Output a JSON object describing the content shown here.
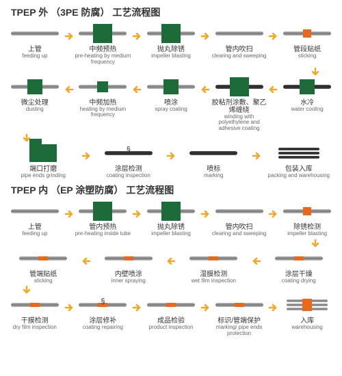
{
  "colors": {
    "green": "#1e6b3a",
    "orange": "#e8691c",
    "arrow": "#f5a623",
    "text": "#333",
    "subtext": "#666"
  },
  "section1": {
    "title": "TPEP 外 （3PE 防腐） 工艺流程图",
    "rows": [
      [
        {
          "cn": "上管",
          "en": "feeding up",
          "icon": "pipe"
        },
        {
          "cn": "中频预热",
          "en": "pre-heating by medium frequency",
          "icon": "pipe-block"
        },
        {
          "cn": "抛丸除锈",
          "en": "impeller blasting",
          "icon": "pipe-block"
        },
        {
          "cn": "管内吹扫",
          "en": "clearing and sweeping",
          "icon": "pipe"
        },
        {
          "cn": "管段贴纸",
          "en": "sticking",
          "icon": "pipe-osq"
        }
      ],
      [
        {
          "cn": "水冷",
          "en": "water cooling",
          "icon": "pipe-dark-block-sm"
        },
        {
          "cn": "胶粘剂涂敷、聚乙烯缠绕",
          "en": "winding with polyethylene and adhesive coating",
          "icon": "pipe-dark-block"
        },
        {
          "cn": "喷涂",
          "en": "spray coating",
          "icon": "pipe-block-sm"
        },
        {
          "cn": "中频加热",
          "en": "heating by medium frequency",
          "icon": "pipe-block-xs"
        },
        {
          "cn": "微尘处理",
          "en": "dusting",
          "icon": "pipe-block-sm"
        }
      ],
      [
        {
          "cn": "端口打磨",
          "en": "pipe ends grinding",
          "icon": "machine"
        },
        {
          "cn": "涂层检测",
          "en": "coating inspection",
          "icon": "pipe-dark-spring"
        },
        {
          "cn": "喷标",
          "en": "marking",
          "icon": "pipe-dark"
        },
        {
          "cn": "包装入库",
          "en": "packing and warehousing",
          "icon": "stacked"
        }
      ]
    ]
  },
  "section2": {
    "title": "TPEP 内 （EP 涂塑防腐） 工艺流程图",
    "rows": [
      [
        {
          "cn": "上管",
          "en": "feeding up",
          "icon": "pipe"
        },
        {
          "cn": "管内预热",
          "en": "pre-heating inside tube",
          "icon": "pipe-block"
        },
        {
          "cn": "抛丸除锈",
          "en": "impeller blasting",
          "icon": "pipe-block"
        },
        {
          "cn": "管内吹扫",
          "en": "clearing and sweeping",
          "icon": "pipe"
        },
        {
          "cn": "除锈检测",
          "en": "impeller blasting",
          "icon": "pipe-osq"
        }
      ],
      [
        {
          "cn": "涂层干燥",
          "en": "coating drying",
          "icon": "pipe-omark"
        },
        {
          "cn": "湿膜检测",
          "en": "wet film inspection",
          "icon": "pipe-omark"
        },
        {
          "cn": "内壁喷涂",
          "en": "inner spraying",
          "icon": "pipe-omark"
        },
        {
          "cn": "管端贴纸",
          "en": "sticking",
          "icon": "pipe-omark"
        }
      ],
      [
        {
          "cn": "干膜检测",
          "en": "dry film inspection",
          "icon": "pipe-omark"
        },
        {
          "cn": "涂层修补",
          "en": "coating repairing",
          "icon": "pipe-omark-spring"
        },
        {
          "cn": "成品检验",
          "en": "product inspection",
          "icon": "pipe-omark"
        },
        {
          "cn": "标识/管端保护",
          "en": "marking/ pipe ends protection",
          "icon": "pipe-omark"
        },
        {
          "cn": "入库",
          "en": "warehousing",
          "icon": "stacked-o"
        }
      ]
    ]
  }
}
